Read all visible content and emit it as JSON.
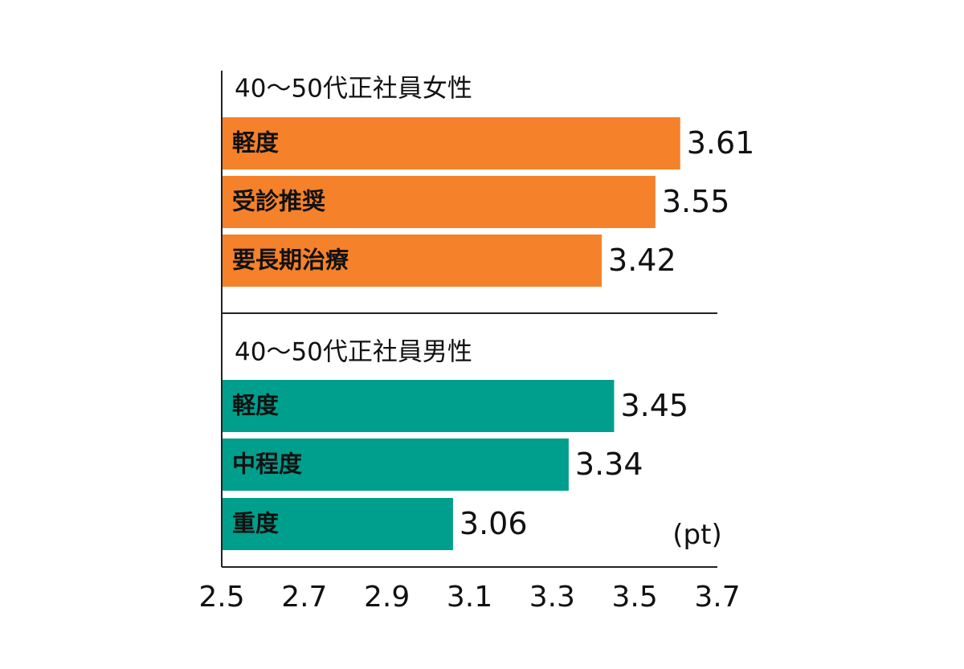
{
  "chart_data": {
    "type": "bar",
    "orientation": "horizontal",
    "unit": "(pt)",
    "xlim": [
      2.5,
      3.7
    ],
    "xticks": [
      "2.5",
      "2.7",
      "2.9",
      "3.1",
      "3.3",
      "3.5",
      "3.7"
    ],
    "grid": false,
    "groups": [
      {
        "title": "40～50代正社員女性",
        "color": "#f5812a",
        "bars": [
          {
            "label": "軽度",
            "value": 3.61,
            "value_label": "3.61"
          },
          {
            "label": "受診推奨",
            "value": 3.55,
            "value_label": "3.55"
          },
          {
            "label": "要長期治療",
            "value": 3.42,
            "value_label": "3.42"
          }
        ]
      },
      {
        "title": "40～50代正社員男性",
        "color": "#009e8c",
        "bars": [
          {
            "label": "軽度",
            "value": 3.45,
            "value_label": "3.45"
          },
          {
            "label": "中程度",
            "value": 3.34,
            "value_label": "3.34"
          },
          {
            "label": "重度",
            "value": 3.06,
            "value_label": "3.06"
          }
        ]
      }
    ]
  }
}
